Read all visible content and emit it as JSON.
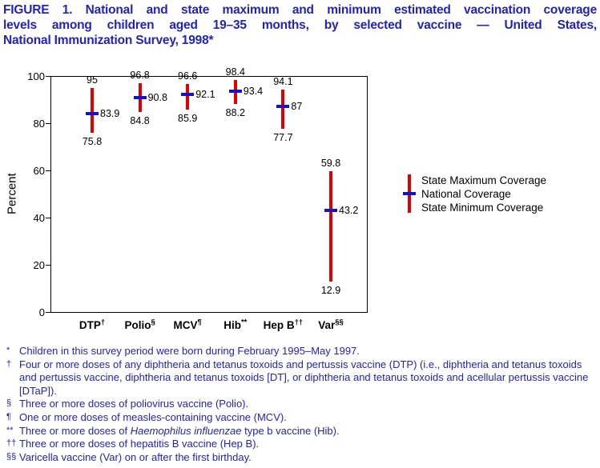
{
  "page": {
    "colors": {
      "title_text": "#2222c0",
      "footnote_text": "#2222c0"
    }
  },
  "figure": {
    "title_lines": [
      "FIGURE 1. National and state maximum and minimum estimated vaccination coverage",
      "levels among children aged 19–35 months, by selected vaccine — United States,",
      "National Immunization Survey, 1998*"
    ]
  },
  "chart_data": {
    "type": "range-bar",
    "title": "National and state maximum and minimum estimated vaccination coverage levels among children aged 19–35 months, by selected vaccine — United States, National Immunization Survey, 1998",
    "ylabel": "Percent",
    "xlabel": "",
    "ylim": [
      0,
      100
    ],
    "yticks": [
      0,
      20,
      40,
      60,
      80,
      100
    ],
    "grid": false,
    "legend_position": "right",
    "categories": [
      {
        "label": "DTP",
        "sup": "†"
      },
      {
        "label": "Polio",
        "sup": "§"
      },
      {
        "label": "MCV",
        "sup": "¶"
      },
      {
        "label": "Hib",
        "sup": "**"
      },
      {
        "label": "Hep B",
        "sup": "††"
      },
      {
        "label": "Var",
        "sup": "§§"
      }
    ],
    "series": [
      {
        "name": "State Maximum Coverage",
        "values": [
          95,
          96.8,
          96.6,
          98.4,
          94.1,
          59.8
        ]
      },
      {
        "name": "National Coverage",
        "values": [
          83.9,
          90.8,
          92.1,
          93.4,
          87,
          43.2
        ]
      },
      {
        "name": "State Minimum Coverage",
        "values": [
          75.8,
          84.8,
          85.9,
          88.2,
          77.7,
          12.9
        ]
      }
    ],
    "colors": {
      "range_line": "#e00000",
      "national_marker": "#1313cc"
    }
  },
  "footnotes": [
    {
      "sym": "*",
      "text": "Children in this survey period were born during February 1995–May 1997."
    },
    {
      "sym": "†",
      "text": "Four or more doses of any diphtheria and tetanus toxoids and pertussis vaccine (DTP) (i.e., diphtheria and tetanus toxoids and pertussis vaccine, diphtheria and tetanus toxoids [DT], or diphtheria and tetanus toxoids and acellular pertussis vaccine [DTaP])."
    },
    {
      "sym": "§",
      "text": "Three or more doses of poliovirus vaccine (Polio)."
    },
    {
      "sym": "¶",
      "text": "One or more doses of measles-containing vaccine (MCV)."
    },
    {
      "sym": "**",
      "pre": "Three or more doses of ",
      "italic": "Haemophilus influenzae",
      "post": " type b vaccine (Hib)."
    },
    {
      "sym": "††",
      "text": "Three or more doses of hepatitis B vaccine (Hep B)."
    },
    {
      "sym": "§§",
      "text": "Varicella vaccine (Var) on or after the first birthday."
    }
  ]
}
